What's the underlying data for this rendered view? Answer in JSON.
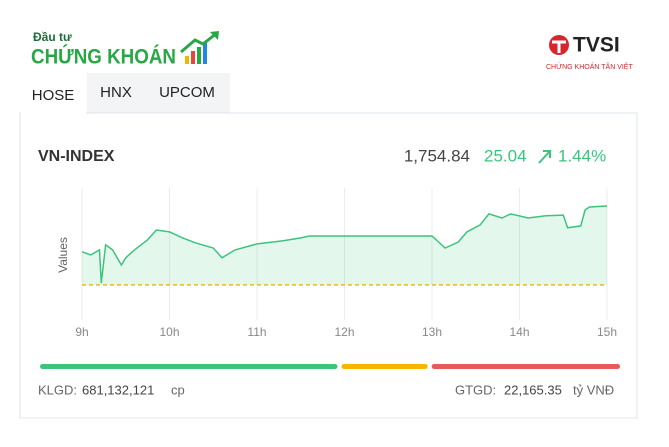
{
  "header": {
    "logo_top": "Đầu tư",
    "logo_main": "CHỨNG KHOÁN",
    "partner": "TVSI",
    "partner_sub": "CHỨNG KHOÁN TÂN VIỆT"
  },
  "tabs": [
    "HOSE",
    "HNX",
    "UPCOM"
  ],
  "index": {
    "name": "VN-INDEX",
    "value": "1,754.84",
    "change": "25.04",
    "change_pct": "1.44%"
  },
  "chart_data": {
    "type": "line",
    "y_label": "Values",
    "x": [
      9.0,
      9.1,
      9.2,
      9.22,
      9.27,
      9.35,
      9.45,
      9.5,
      9.6,
      9.75,
      9.85,
      10.0,
      10.15,
      10.3,
      10.5,
      10.6,
      10.75,
      11.0,
      11.3,
      11.5,
      11.6,
      13.0,
      13.15,
      13.3,
      13.4,
      13.55,
      13.65,
      13.8,
      13.9,
      14.1,
      14.3,
      14.5,
      14.55,
      14.7,
      14.75,
      14.8,
      15.0
    ],
    "series": [
      {
        "name": "VN-INDEX",
        "color": "#3cc47c",
        "values": [
          1740.3,
          1739.3,
          1740.9,
          1730.4,
          1742.5,
          1740.9,
          1736.1,
          1738.4,
          1740.9,
          1744.1,
          1747.2,
          1746.6,
          1744.7,
          1743.1,
          1741.5,
          1738.4,
          1740.9,
          1742.8,
          1743.8,
          1744.7,
          1745.3,
          1745.3,
          1741.5,
          1743.4,
          1746.6,
          1748.8,
          1752.3,
          1751.0,
          1752.3,
          1751.0,
          1751.7,
          1751.9,
          1747.9,
          1748.5,
          1753.6,
          1754.5,
          1754.8
        ]
      }
    ],
    "reference": 1729.8,
    "reference_color": "#f0b400",
    "xlim": [
      9,
      15
    ],
    "ylim": [
      1718.7,
      1760.5
    ],
    "xticks": [
      {
        "value": 9,
        "label": "9h"
      },
      {
        "value": 10,
        "label": "10h"
      },
      {
        "value": 11,
        "label": "11h"
      },
      {
        "value": 12,
        "label": "12h"
      },
      {
        "value": 13,
        "label": "13h"
      },
      {
        "value": 14,
        "label": "14h"
      },
      {
        "value": 15,
        "label": "15h"
      }
    ],
    "grid": true
  },
  "breadth": {
    "values": [
      297,
      86,
      188
    ],
    "colors": [
      "#3cc47c",
      "#f7b500",
      "#e85a5a"
    ]
  },
  "footer": {
    "volume_label": "KLGD:",
    "volume": "681,132,121",
    "volume_unit": "cp",
    "value_label": "GTGD:",
    "value": "22,165.35",
    "value_unit": "tỷ VNĐ"
  }
}
